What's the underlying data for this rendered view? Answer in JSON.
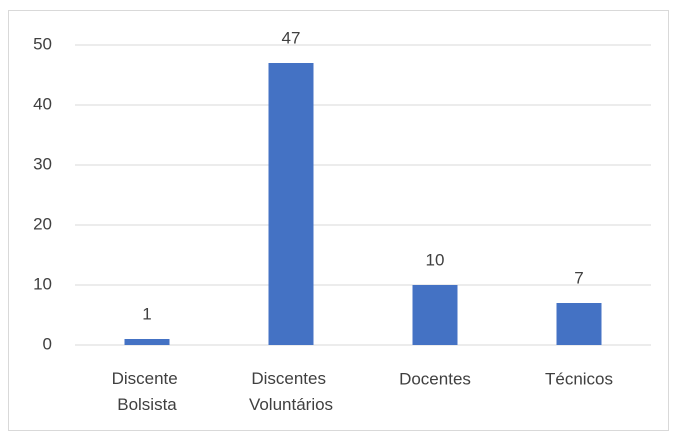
{
  "chart_data": {
    "type": "bar",
    "categories": [
      "Discente Bolsista",
      "Discentes Voluntários",
      "Docentes",
      "Técnicos"
    ],
    "values": [
      1,
      47,
      10,
      7
    ],
    "color": "#4472c4",
    "ylim": [
      0,
      50
    ],
    "yticks": [
      0,
      10,
      20,
      30,
      40,
      50
    ],
    "grid": true
  }
}
